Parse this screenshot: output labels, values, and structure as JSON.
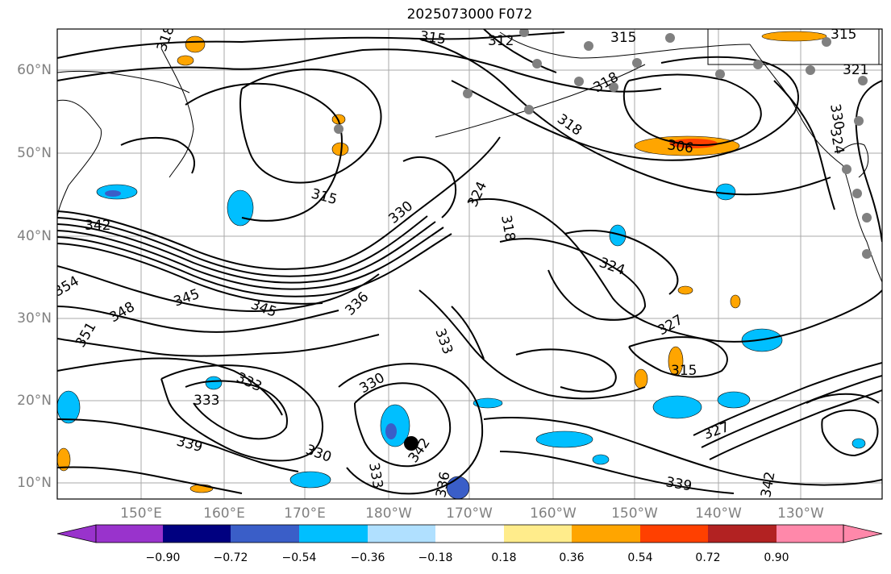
{
  "title": "2025073000 F072",
  "map": {
    "lat_labels": [
      "60°N",
      "50°N",
      "40°N",
      "30°N",
      "20°N",
      "10°N"
    ],
    "lon_labels": [
      "150°E",
      "160°E",
      "170°E",
      "180°W",
      "170°W",
      "160°W",
      "150°W",
      "140°W",
      "130°W"
    ],
    "contour_labels": [
      "315",
      "312",
      "315",
      "318",
      "318",
      "306",
      "318",
      "315",
      "315",
      "324",
      "318",
      "324",
      "330",
      "330",
      "342",
      "345",
      "345",
      "336",
      "333",
      "348",
      "351",
      "354",
      "333",
      "333",
      "339",
      "330",
      "342",
      "330",
      "333",
      "336",
      "339",
      "327",
      "315",
      "327",
      "342",
      "324",
      "321"
    ]
  },
  "colorbar": {
    "ticks": [
      "−0.90",
      "−0.72",
      "−0.54",
      "−0.36",
      "−0.18",
      "0.18",
      "0.36",
      "0.54",
      "0.72",
      "0.90"
    ],
    "colors": [
      "#9933cc",
      "#000080",
      "#3a5ec8",
      "#00bfff",
      "#b0e0ff",
      "#ffffff",
      "#ffec8b",
      "#ffa500",
      "#ff4000",
      "#b22222",
      "#ff88aa"
    ]
  }
}
